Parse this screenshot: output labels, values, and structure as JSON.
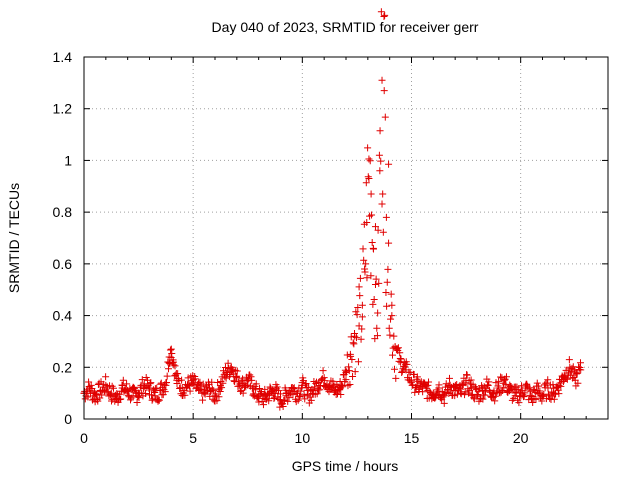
{
  "chart_data": {
    "type": "scatter",
    "title": "Day 040 of 2023, SRMTID for receiver gerr",
    "xlabel": "GPS time / hours",
    "ylabel": "SRMTID / TECUs",
    "xlim": [
      0,
      24
    ],
    "ylim": [
      0,
      1.4
    ],
    "xticks": [
      0,
      5,
      10,
      15,
      20
    ],
    "xtick_labels": [
      "0",
      "5",
      "10",
      "15",
      "20"
    ],
    "yticks": [
      0,
      0.2,
      0.4,
      0.6,
      0.8,
      1.0,
      1.2,
      1.4
    ],
    "ytick_labels": [
      "0",
      "0.2",
      "0.4",
      "0.6",
      "0.8",
      "1",
      "1.2",
      "1.4"
    ],
    "grid": true,
    "marker": "+",
    "series": [
      {
        "name": "SRMTID",
        "color": "#e00000",
        "x": [
          0.0,
          0.25,
          0.5,
          0.75,
          1.0,
          1.25,
          1.5,
          1.75,
          2.0,
          2.25,
          2.5,
          2.75,
          3.0,
          3.25,
          3.5,
          3.75,
          3.9,
          4.0,
          4.1,
          4.25,
          4.5,
          4.75,
          5.0,
          5.25,
          5.5,
          5.75,
          6.0,
          6.25,
          6.5,
          6.75,
          7.0,
          7.25,
          7.5,
          7.75,
          8.0,
          8.25,
          8.5,
          8.75,
          9.0,
          9.25,
          9.5,
          9.75,
          10.0,
          10.25,
          10.5,
          10.75,
          11.0,
          11.25,
          11.5,
          11.75,
          12.0,
          12.2,
          12.4,
          12.6,
          12.75,
          12.85,
          12.95,
          13.05,
          13.15,
          13.25,
          13.35,
          13.45,
          13.55,
          13.65,
          13.75,
          13.85,
          13.95,
          14.1,
          14.25,
          14.5,
          14.75,
          15.0,
          15.25,
          15.5,
          15.75,
          16.0,
          16.25,
          16.5,
          16.75,
          17.0,
          17.25,
          17.5,
          17.75,
          18.0,
          18.25,
          18.5,
          18.75,
          19.0,
          19.25,
          19.5,
          19.75,
          20.0,
          20.25,
          20.5,
          20.75,
          21.0,
          21.25,
          21.5,
          21.75,
          22.0,
          22.25,
          22.5,
          22.75
        ],
        "y": [
          0.1,
          0.12,
          0.09,
          0.11,
          0.13,
          0.1,
          0.08,
          0.12,
          0.11,
          0.09,
          0.1,
          0.13,
          0.12,
          0.09,
          0.11,
          0.14,
          0.24,
          0.27,
          0.22,
          0.15,
          0.12,
          0.13,
          0.14,
          0.11,
          0.1,
          0.12,
          0.09,
          0.13,
          0.18,
          0.2,
          0.16,
          0.13,
          0.15,
          0.12,
          0.09,
          0.08,
          0.1,
          0.11,
          0.07,
          0.09,
          0.12,
          0.1,
          0.13,
          0.09,
          0.11,
          0.14,
          0.16,
          0.13,
          0.11,
          0.12,
          0.18,
          0.25,
          0.32,
          0.36,
          0.44,
          0.58,
          0.76,
          0.93,
          0.87,
          0.66,
          0.52,
          0.41,
          0.96,
          1.31,
          1.27,
          0.78,
          0.68,
          0.4,
          0.28,
          0.22,
          0.19,
          0.15,
          0.13,
          0.12,
          0.11,
          0.1,
          0.12,
          0.09,
          0.13,
          0.11,
          0.1,
          0.14,
          0.12,
          0.09,
          0.11,
          0.13,
          0.1,
          0.12,
          0.15,
          0.11,
          0.09,
          0.1,
          0.12,
          0.08,
          0.11,
          0.09,
          0.12,
          0.1,
          0.13,
          0.17,
          0.2,
          0.15,
          0.19
        ]
      }
    ]
  }
}
